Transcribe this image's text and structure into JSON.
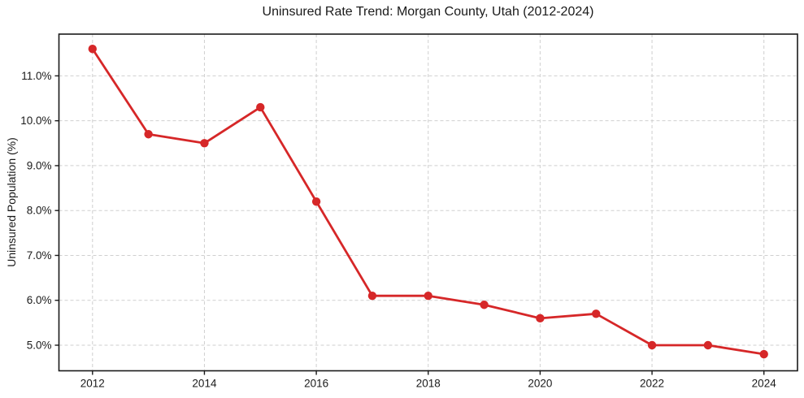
{
  "chart_data": {
    "type": "line",
    "title": "Uninsured Rate Trend: Morgan County, Utah (2012-2024)",
    "xlabel": "",
    "ylabel": "Uninsured Population (%)",
    "x": [
      2012,
      2013,
      2014,
      2015,
      2016,
      2017,
      2018,
      2019,
      2020,
      2021,
      2022,
      2023,
      2024
    ],
    "values": [
      11.6,
      9.7,
      9.5,
      10.3,
      8.2,
      6.1,
      6.1,
      5.9,
      5.6,
      5.7,
      5.0,
      5.0,
      4.8
    ],
    "xtick_values": [
      2012,
      2014,
      2016,
      2018,
      2020,
      2022,
      2024
    ],
    "xtick_labels": [
      "2012",
      "2014",
      "2016",
      "2018",
      "2020",
      "2022",
      "2024"
    ],
    "ytick_values": [
      5.0,
      6.0,
      7.0,
      8.0,
      9.0,
      10.0,
      11.0
    ],
    "ytick_labels": [
      "5.0%",
      "6.0%",
      "7.0%",
      "8.0%",
      "9.0%",
      "10.0%",
      "11.0%"
    ],
    "xlim": [
      2011.4,
      2024.6
    ],
    "ylim": [
      4.43,
      11.93
    ],
    "grid": true,
    "legend": "none",
    "line_color": "#d62728",
    "marker": "circle"
  },
  "colors": {
    "background": "#ffffff",
    "grid": "#cfcfcf",
    "spine": "#1a1a1a",
    "text": "#1a1a1a"
  }
}
